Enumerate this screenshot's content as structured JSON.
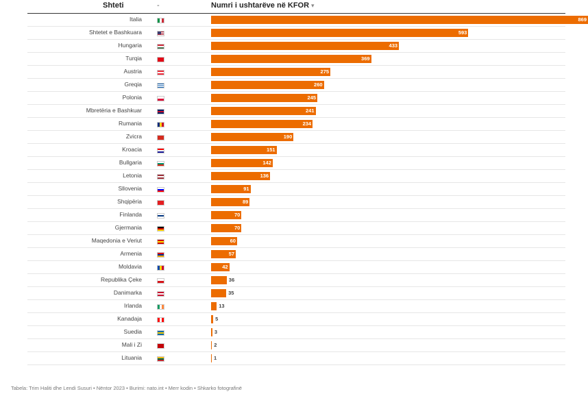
{
  "header": {
    "country_label": "Shteti",
    "flag_label": "-",
    "value_label": "Numri i ushtarëve në KFOR",
    "sort_icon": "sort-arrow-icon"
  },
  "footer": {
    "text": "Tabela: Trim Haliti dhe Lendi Susuri • Nëntor 2023 • Burimi: nato.int • Merr kodin • Shkarko fotografinë"
  },
  "colors": {
    "bar": "#ec6c00",
    "divider": "#e6e6e6",
    "header_rule": "#333333"
  },
  "chart_data": {
    "type": "bar",
    "orientation": "horizontal",
    "xlim": [
      0,
      880
    ],
    "categories": [
      "Italia",
      "Shtetet e Bashkuara",
      "Hungaria",
      "Turqia",
      "Austria",
      "Greqia",
      "Polonia",
      "Mbretëria e Bashkuar",
      "Rumania",
      "Zvicra",
      "Kroacia",
      "Bullgaria",
      "Letonia",
      "Sllovenia",
      "Shqipëria",
      "Finlanda",
      "Gjermania",
      "Maqedonia e Veriut",
      "Armenia",
      "Moldavia",
      "Republika Çeke",
      "Danimarka",
      "Irlanda",
      "Kanadaja",
      "Suedia",
      "Mali i Zi",
      "Lituania"
    ],
    "values": [
      869,
      593,
      433,
      369,
      275,
      260,
      245,
      241,
      234,
      190,
      151,
      142,
      136,
      91,
      89,
      70,
      70,
      60,
      57,
      42,
      36,
      35,
      13,
      5,
      3,
      2,
      1
    ],
    "flags": [
      {
        "stripes": "v",
        "colors": [
          "#009246",
          "#ffffff",
          "#ce2b37"
        ]
      },
      {
        "stripes": "us",
        "colors": [
          "#b22234",
          "#ffffff",
          "#3c3b6e"
        ]
      },
      {
        "stripes": "h",
        "colors": [
          "#ce2939",
          "#ffffff",
          "#477050"
        ]
      },
      {
        "stripes": "h",
        "colors": [
          "#e30a17"
        ]
      },
      {
        "stripes": "h",
        "colors": [
          "#ed2939",
          "#ffffff",
          "#ed2939"
        ]
      },
      {
        "stripes": "h",
        "colors": [
          "#0d5eaf",
          "#ffffff",
          "#0d5eaf",
          "#ffffff",
          "#0d5eaf"
        ]
      },
      {
        "stripes": "h",
        "colors": [
          "#ffffff",
          "#dc143c"
        ]
      },
      {
        "stripes": "h",
        "colors": [
          "#012169",
          "#c8102e",
          "#012169"
        ]
      },
      {
        "stripes": "v",
        "colors": [
          "#002b7f",
          "#fcd116",
          "#ce1126"
        ]
      },
      {
        "stripes": "h",
        "colors": [
          "#d52b1e"
        ]
      },
      {
        "stripes": "h",
        "colors": [
          "#ff0000",
          "#ffffff",
          "#171796"
        ]
      },
      {
        "stripes": "h",
        "colors": [
          "#ffffff",
          "#00966e",
          "#d62612"
        ]
      },
      {
        "stripes": "h",
        "colors": [
          "#9e3039",
          "#ffffff",
          "#9e3039"
        ]
      },
      {
        "stripes": "h",
        "colors": [
          "#ffffff",
          "#0000ff",
          "#ff0000"
        ]
      },
      {
        "stripes": "h",
        "colors": [
          "#e41e20"
        ]
      },
      {
        "stripes": "h",
        "colors": [
          "#ffffff",
          "#003580",
          "#ffffff"
        ]
      },
      {
        "stripes": "h",
        "colors": [
          "#000000",
          "#dd0000",
          "#ffce00"
        ]
      },
      {
        "stripes": "h",
        "colors": [
          "#d20000",
          "#ffe600",
          "#d20000"
        ]
      },
      {
        "stripes": "h",
        "colors": [
          "#d90012",
          "#0033a0",
          "#f2a800"
        ]
      },
      {
        "stripes": "v",
        "colors": [
          "#0046ae",
          "#ffd200",
          "#cc092f"
        ]
      },
      {
        "stripes": "h",
        "colors": [
          "#ffffff",
          "#d7141a"
        ]
      },
      {
        "stripes": "h",
        "colors": [
          "#c8102e",
          "#ffffff",
          "#c8102e"
        ]
      },
      {
        "stripes": "v",
        "colors": [
          "#169b62",
          "#ffffff",
          "#ff883e"
        ]
      },
      {
        "stripes": "v",
        "colors": [
          "#ff0000",
          "#ffffff",
          "#ff0000"
        ]
      },
      {
        "stripes": "h",
        "colors": [
          "#006aa7",
          "#fecc00",
          "#006aa7"
        ]
      },
      {
        "stripes": "h",
        "colors": [
          "#c40308"
        ]
      },
      {
        "stripes": "h",
        "colors": [
          "#fdb913",
          "#006a44",
          "#c1272d"
        ]
      }
    ]
  }
}
